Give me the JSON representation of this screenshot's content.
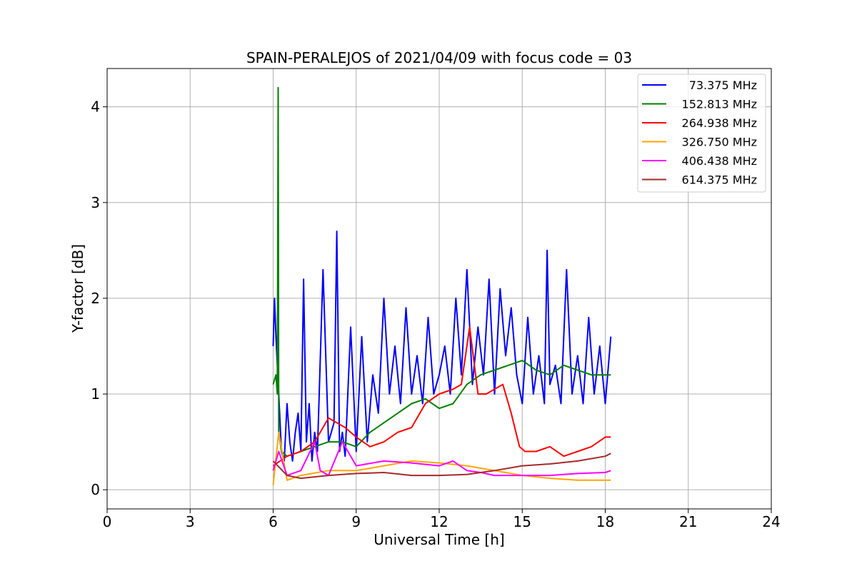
{
  "chart_data": {
    "type": "line",
    "title": "SPAIN-PERALEJOS of 2021/04/09 with focus code = 03",
    "xlabel": "Universal Time [h]",
    "ylabel": "Y-factor [dB]",
    "xlim": [
      0,
      24
    ],
    "ylim": [
      -0.2,
      4.4
    ],
    "xticks": [
      "0",
      "3",
      "6",
      "9",
      "12",
      "15",
      "18",
      "21",
      "24"
    ],
    "yticks": [
      "0",
      "1",
      "2",
      "3",
      "4"
    ],
    "grid": true,
    "legend_position": "top-right",
    "series": [
      {
        "name": "73.375 MHz",
        "color": "#0000ff",
        "x": [
          6.0,
          6.05,
          6.1,
          6.2,
          6.3,
          6.4,
          6.5,
          6.6,
          6.7,
          6.8,
          6.9,
          7.0,
          7.1,
          7.2,
          7.3,
          7.4,
          7.5,
          7.6,
          7.8,
          8.0,
          8.2,
          8.3,
          8.4,
          8.5,
          8.6,
          8.8,
          9.0,
          9.2,
          9.4,
          9.6,
          9.8,
          10.0,
          10.2,
          10.4,
          10.6,
          10.8,
          11.0,
          11.2,
          11.4,
          11.6,
          11.8,
          12.0,
          12.2,
          12.4,
          12.6,
          12.8,
          13.0,
          13.2,
          13.4,
          13.6,
          13.8,
          14.0,
          14.2,
          14.4,
          14.6,
          14.8,
          15.0,
          15.2,
          15.4,
          15.6,
          15.8,
          15.9,
          16.0,
          16.2,
          16.4,
          16.6,
          16.8,
          17.0,
          17.2,
          17.4,
          17.6,
          17.8,
          18.0,
          18.2
        ],
        "y": [
          1.5,
          2.0,
          1.6,
          1.0,
          0.4,
          0.3,
          0.9,
          0.5,
          0.3,
          0.6,
          0.8,
          0.4,
          2.2,
          0.5,
          0.9,
          0.3,
          0.6,
          0.4,
          2.3,
          0.5,
          0.7,
          2.7,
          0.4,
          0.6,
          0.35,
          1.7,
          0.4,
          1.6,
          0.5,
          1.2,
          0.8,
          2.0,
          1.0,
          1.5,
          0.9,
          1.9,
          1.0,
          1.4,
          0.9,
          1.8,
          1.0,
          1.2,
          1.5,
          1.0,
          2.0,
          1.2,
          2.3,
          1.1,
          1.7,
          1.2,
          2.2,
          1.0,
          2.1,
          1.4,
          1.9,
          1.2,
          0.9,
          1.8,
          1.0,
          1.4,
          0.9,
          2.5,
          1.1,
          1.3,
          0.9,
          2.3,
          1.0,
          1.4,
          0.9,
          1.8,
          1.0,
          1.5,
          0.9,
          1.6
        ]
      },
      {
        "name": "152.813 MHz",
        "color": "#008000",
        "x": [
          6.0,
          6.1,
          6.15,
          6.18,
          6.2,
          6.3,
          6.5,
          7.0,
          7.5,
          8.0,
          8.5,
          9.0,
          9.5,
          10.0,
          10.5,
          11.0,
          11.5,
          12.0,
          12.5,
          13.0,
          13.5,
          14.0,
          14.5,
          15.0,
          15.5,
          16.0,
          16.5,
          17.0,
          17.5,
          18.0,
          18.2
        ],
        "y": [
          1.1,
          1.2,
          1.0,
          4.2,
          0.6,
          0.4,
          0.35,
          0.4,
          0.45,
          0.5,
          0.5,
          0.45,
          0.6,
          0.7,
          0.8,
          0.9,
          0.95,
          0.85,
          0.9,
          1.1,
          1.2,
          1.25,
          1.3,
          1.35,
          1.25,
          1.2,
          1.3,
          1.25,
          1.2,
          1.2,
          1.2
        ]
      },
      {
        "name": "264.938 MHz",
        "color": "#ff0000",
        "x": [
          6.0,
          6.5,
          7.0,
          7.5,
          8.0,
          8.3,
          8.6,
          9.0,
          9.5,
          10.0,
          10.5,
          11.0,
          11.5,
          12.0,
          12.5,
          12.8,
          13.1,
          13.4,
          13.7,
          14.0,
          14.3,
          14.6,
          14.9,
          15.1,
          15.5,
          16.0,
          16.5,
          17.0,
          17.5,
          18.0,
          18.2
        ],
        "y": [
          0.25,
          0.35,
          0.4,
          0.5,
          0.75,
          0.7,
          0.65,
          0.55,
          0.45,
          0.5,
          0.6,
          0.65,
          0.9,
          1.0,
          1.05,
          1.1,
          1.7,
          1.0,
          1.0,
          1.05,
          1.1,
          0.8,
          0.45,
          0.4,
          0.4,
          0.45,
          0.35,
          0.4,
          0.45,
          0.55,
          0.55
        ]
      },
      {
        "name": "326.750 MHz",
        "color": "#ffa500",
        "x": [
          6.0,
          6.2,
          6.5,
          7.0,
          8.0,
          9.0,
          10.0,
          11.0,
          12.0,
          13.0,
          14.0,
          15.0,
          16.0,
          17.0,
          18.0,
          18.2
        ],
        "y": [
          0.05,
          0.6,
          0.1,
          0.15,
          0.2,
          0.2,
          0.25,
          0.3,
          0.28,
          0.25,
          0.2,
          0.15,
          0.12,
          0.1,
          0.1,
          0.1
        ]
      },
      {
        "name": "406.438 MHz",
        "color": "#ff00ff",
        "x": [
          6.0,
          6.2,
          6.5,
          7.0,
          7.5,
          7.7,
          8.0,
          8.5,
          9.0,
          10.0,
          11.0,
          12.0,
          12.5,
          13.0,
          13.5,
          14.0,
          15.0,
          16.0,
          17.0,
          18.0,
          18.2
        ],
        "y": [
          0.2,
          0.4,
          0.15,
          0.2,
          0.5,
          0.2,
          0.15,
          0.5,
          0.25,
          0.3,
          0.28,
          0.25,
          0.3,
          0.2,
          0.18,
          0.15,
          0.15,
          0.15,
          0.17,
          0.18,
          0.2
        ]
      },
      {
        "name": "614.375 MHz",
        "color": "#a52a2a",
        "x": [
          6.0,
          6.5,
          7.0,
          8.0,
          9.0,
          10.0,
          11.0,
          12.0,
          13.0,
          14.0,
          15.0,
          16.0,
          17.0,
          18.0,
          18.2
        ],
        "y": [
          0.3,
          0.15,
          0.12,
          0.15,
          0.17,
          0.18,
          0.15,
          0.15,
          0.16,
          0.2,
          0.25,
          0.27,
          0.3,
          0.35,
          0.38
        ]
      }
    ]
  }
}
